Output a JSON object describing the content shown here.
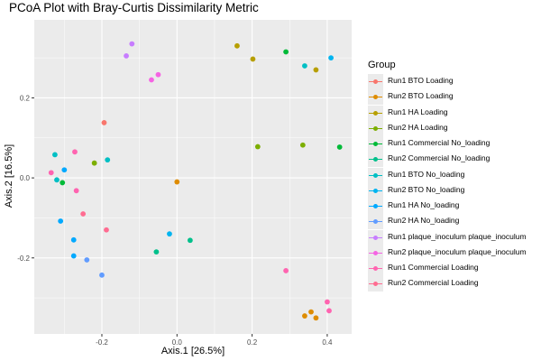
{
  "chart_data": {
    "type": "scatter",
    "title": "PCoA Plot with Bray-Curtis Dissimilarity Metric",
    "xlabel": "Axis.1   [26.5%]",
    "ylabel": "Axis.2   [16.5%]",
    "xlim": [
      -0.38,
      0.465
    ],
    "ylim": [
      -0.39,
      0.395
    ],
    "x_ticks": [
      -0.2,
      0.0,
      0.2,
      0.4
    ],
    "x_tick_labels": [
      "-0.2",
      "0.0",
      "0.2",
      "0.4"
    ],
    "y_ticks": [
      -0.2,
      0.0,
      0.2
    ],
    "y_tick_labels": [
      "-0.2",
      "0.0",
      "0.2"
    ],
    "grid": true,
    "legend_title": "Group",
    "legend_position": "right",
    "series": [
      {
        "name": "Run1 BTO Loading",
        "color": "#F8766D",
        "points": [
          [
            -0.194,
            0.138
          ]
        ]
      },
      {
        "name": "Run2 BTO Loading",
        "color": "#DE8C00",
        "points": [
          [
            0.0,
            -0.01
          ],
          [
            0.34,
            -0.345
          ],
          [
            0.357,
            -0.335
          ],
          [
            0.37,
            -0.35
          ]
        ]
      },
      {
        "name": "Run1 HA Loading",
        "color": "#B79F00",
        "points": [
          [
            0.16,
            0.33
          ],
          [
            0.202,
            0.297
          ],
          [
            0.37,
            0.27
          ]
        ]
      },
      {
        "name": "Run2 HA Loading",
        "color": "#7CAE00",
        "points": [
          [
            -0.22,
            0.037
          ],
          [
            0.215,
            0.078
          ],
          [
            0.335,
            0.082
          ]
        ]
      },
      {
        "name": "Run1 Commercial No_loading",
        "color": "#00BA38",
        "points": [
          [
            -0.305,
            -0.012
          ],
          [
            0.29,
            0.315
          ],
          [
            0.433,
            0.077
          ]
        ]
      },
      {
        "name": "Run2 Commercial No_loading",
        "color": "#00C08B",
        "points": [
          [
            -0.055,
            -0.185
          ],
          [
            0.035,
            -0.156
          ]
        ]
      },
      {
        "name": "Run1 BTO No_loading",
        "color": "#00BFC4",
        "points": [
          [
            -0.325,
            0.058
          ],
          [
            -0.32,
            -0.005
          ],
          [
            -0.185,
            0.045
          ],
          [
            0.34,
            0.28
          ]
        ]
      },
      {
        "name": "Run2 BTO No_loading",
        "color": "#00B4F0",
        "points": [
          [
            -0.02,
            -0.14
          ],
          [
            0.41,
            0.3
          ]
        ]
      },
      {
        "name": "Run1 HA No_loading",
        "color": "#00A9FF",
        "points": [
          [
            -0.3,
            0.02
          ],
          [
            -0.31,
            -0.108
          ],
          [
            -0.275,
            -0.155
          ],
          [
            -0.275,
            -0.195
          ]
        ]
      },
      {
        "name": "Run2 HA No_loading",
        "color": "#619CFF",
        "points": [
          [
            -0.24,
            -0.205
          ],
          [
            -0.2,
            -0.243
          ]
        ]
      },
      {
        "name": "Run1 plaque_inoculum plaque_inoculum",
        "color": "#C77CFF",
        "points": [
          [
            -0.12,
            0.335
          ],
          [
            -0.135,
            0.305
          ]
        ]
      },
      {
        "name": "Run2 plaque_inoculum plaque_inoculum",
        "color": "#F564E3",
        "points": [
          [
            -0.05,
            0.258
          ],
          [
            -0.068,
            0.245
          ]
        ]
      },
      {
        "name": "Run1 Commercial Loading",
        "color": "#FF64B0",
        "points": [
          [
            -0.272,
            0.065
          ],
          [
            -0.335,
            0.013
          ],
          [
            -0.268,
            -0.032
          ],
          [
            0.29,
            -0.232
          ],
          [
            0.4,
            -0.31
          ],
          [
            0.405,
            -0.332
          ]
        ]
      },
      {
        "name": "Run2 Commercial Loading",
        "color": "#FF6C91",
        "points": [
          [
            -0.25,
            -0.09
          ],
          [
            -0.188,
            -0.13
          ]
        ]
      }
    ]
  }
}
